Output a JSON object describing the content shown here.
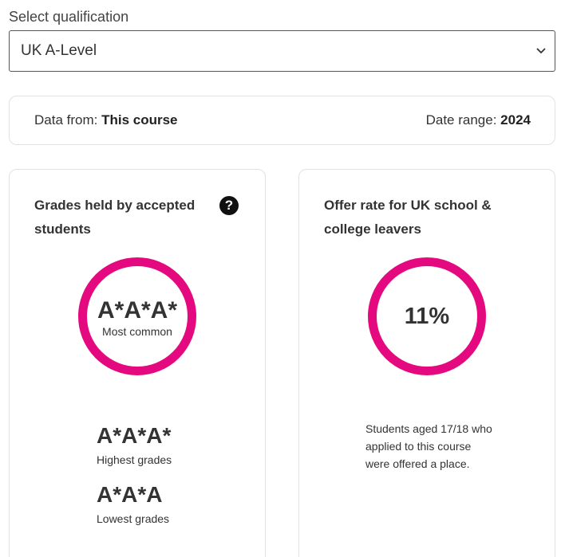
{
  "qualification": {
    "label": "Select qualification",
    "selected": "UK A-Level"
  },
  "meta": {
    "data_from_label": "Data from:",
    "data_from_value": "This course",
    "date_range_label": "Date range:",
    "date_range_value": "2024"
  },
  "grades_card": {
    "title": "Grades held by accepted students",
    "help_icon": "?",
    "most_common_grade": "A*A*A*",
    "most_common_label": "Most common",
    "highest_grade": "A*A*A*",
    "highest_label": "Highest grades",
    "lowest_grade": "A*A*A",
    "lowest_label": "Lowest grades"
  },
  "offer_card": {
    "title": "Offer rate for UK school & college leavers",
    "offer_rate": "11%",
    "description": "Students aged 17/18 who applied to this course were offered a place."
  },
  "colors": {
    "accent_ring": "#e5097f"
  },
  "icons": {
    "dropdown": "chevron-down-icon",
    "help": "question-circle-icon"
  }
}
